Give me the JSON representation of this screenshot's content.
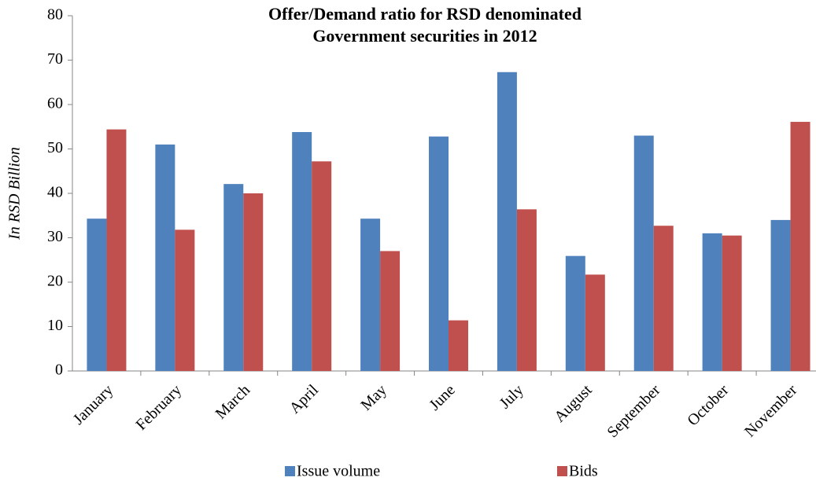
{
  "chart_data": {
    "type": "bar",
    "title": [
      "Offer/Demand ratio for RSD denominated",
      "Government securities in 2012"
    ],
    "y_label": "In RSD Billion",
    "categories": [
      "January",
      "February",
      "March",
      "April",
      "May",
      "June",
      "July",
      "August",
      "September",
      "October",
      "November"
    ],
    "series": [
      {
        "name": "Issue volume",
        "color": "#4f81bd",
        "values": [
          34.3,
          51.0,
          42.1,
          53.8,
          34.3,
          52.8,
          67.3,
          25.9,
          53.0,
          31.0,
          34.0
        ]
      },
      {
        "name": "Bids",
        "color": "#c0504d",
        "values": [
          54.4,
          31.8,
          40.0,
          47.2,
          27.0,
          11.4,
          36.4,
          21.7,
          32.7,
          30.5,
          56.1
        ]
      }
    ],
    "ylim": [
      0,
      80
    ],
    "yticks": [
      0,
      10,
      20,
      30,
      40,
      50,
      60,
      70,
      80
    ],
    "grid": false,
    "legend": "bottom"
  }
}
